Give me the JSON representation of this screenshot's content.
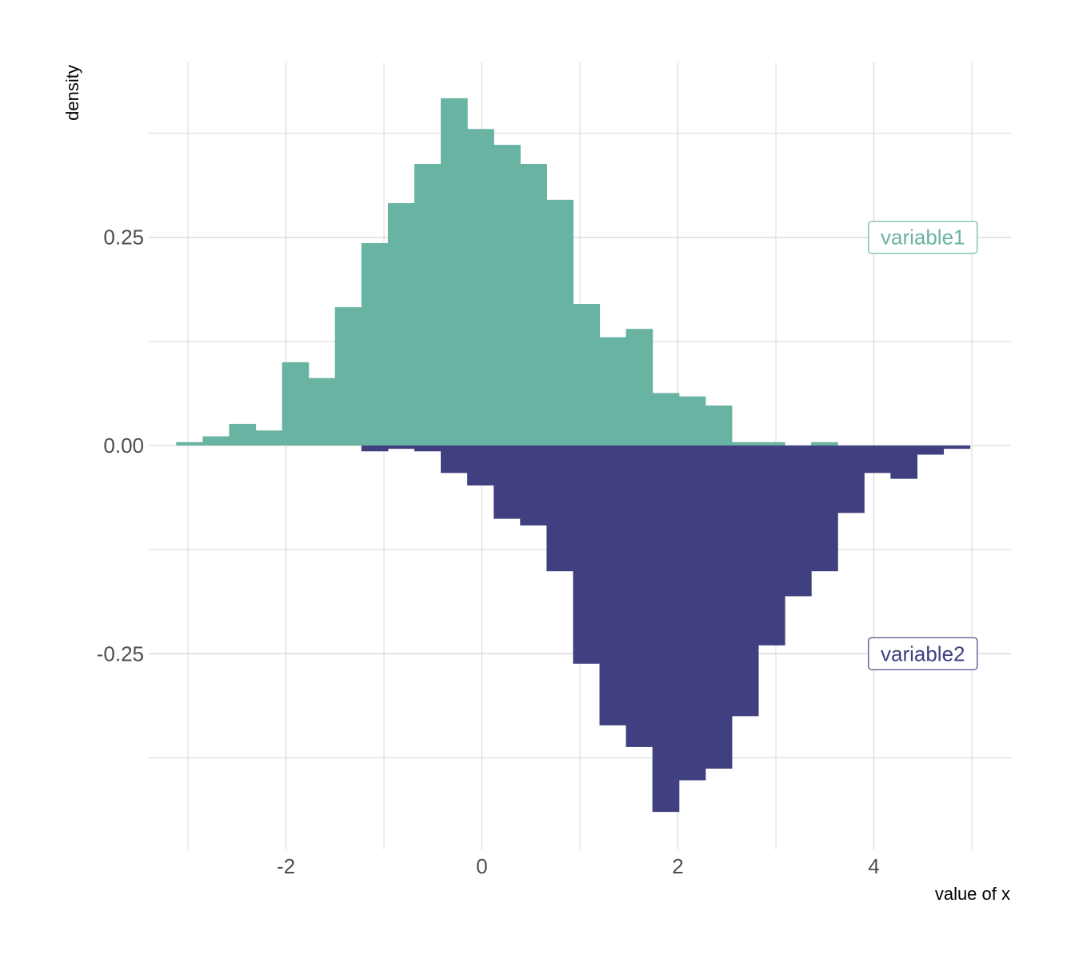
{
  "chart_data": {
    "type": "bar",
    "subtype": "mirrored-histogram",
    "title": "",
    "xlabel": "value of x",
    "ylabel": "density",
    "xlim": [
      -3.4,
      5.4
    ],
    "ylim": [
      -0.485,
      0.46
    ],
    "x_ticks": [
      -2,
      0,
      2,
      4
    ],
    "x_tick_labels": [
      "-2",
      "0",
      "2",
      "4"
    ],
    "y_ticks": [
      -0.25,
      0,
      0.25
    ],
    "y_tick_labels": [
      "-0.25",
      "0.00",
      "0.25"
    ],
    "x_minor_ticks": [
      -3,
      -1,
      1,
      3,
      5
    ],
    "y_minor_ticks": [
      -0.375,
      -0.125,
      0.125,
      0.375
    ],
    "grid": true,
    "bin_width": 0.27,
    "series": [
      {
        "name": "variable1",
        "color": "#69b3a2",
        "direction": "up",
        "bin_left_edges": [
          -3.12,
          -2.85,
          -2.58,
          -2.31,
          -2.04,
          -1.77,
          -1.5,
          -1.23,
          -0.96,
          -0.69,
          -0.42,
          -0.15,
          0.12,
          0.39,
          0.66,
          0.93,
          1.2,
          1.47,
          1.74,
          2.01,
          2.28,
          2.55,
          2.82,
          3.09,
          3.36
        ],
        "values": [
          0.004,
          0.011,
          0.026,
          0.018,
          0.1,
          0.081,
          0.166,
          0.243,
          0.291,
          0.338,
          0.417,
          0.38,
          0.361,
          0.338,
          0.295,
          0.17,
          0.13,
          0.14,
          0.063,
          0.059,
          0.048,
          0.004,
          0.004,
          0.0,
          0.004
        ]
      },
      {
        "name": "variable2",
        "color": "#404080",
        "direction": "down",
        "bin_left_edges": [
          -1.23,
          -0.96,
          -0.69,
          -0.42,
          -0.15,
          0.12,
          0.39,
          0.66,
          0.93,
          1.2,
          1.47,
          1.74,
          2.01,
          2.28,
          2.55,
          2.82,
          3.09,
          3.36,
          3.63,
          3.9,
          4.17,
          4.44,
          4.71
        ],
        "values": [
          0.007,
          0.004,
          0.007,
          0.033,
          0.048,
          0.088,
          0.096,
          0.151,
          0.262,
          0.336,
          0.362,
          0.44,
          0.402,
          0.388,
          0.325,
          0.24,
          0.181,
          0.151,
          0.081,
          0.033,
          0.04,
          0.011,
          0.004
        ]
      }
    ],
    "annotations": [
      {
        "text": "variable1",
        "x": 4.5,
        "y": 0.25,
        "color": "#69b3a2"
      },
      {
        "text": "variable2",
        "x": 4.5,
        "y": -0.25,
        "color": "#404080"
      }
    ]
  }
}
